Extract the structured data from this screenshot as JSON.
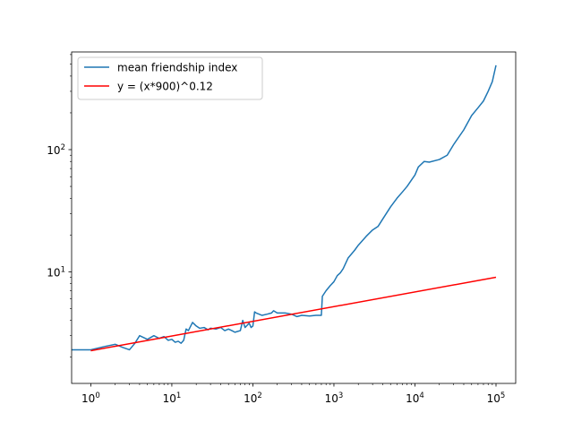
{
  "chart_data": {
    "type": "line",
    "title": "",
    "xlabel": "",
    "ylabel": "",
    "xscale": "log",
    "yscale": "log",
    "xlim": [
      0.58,
      175000
    ],
    "ylim": [
      1.22,
      630
    ],
    "grid": false,
    "legend_position": "top-left",
    "x_ticks": [
      {
        "value": 1,
        "base": "10",
        "exp": "0"
      },
      {
        "value": 10,
        "base": "10",
        "exp": "1"
      },
      {
        "value": 100,
        "base": "10",
        "exp": "2"
      },
      {
        "value": 1000,
        "base": "10",
        "exp": "3"
      },
      {
        "value": 10000,
        "base": "10",
        "exp": "4"
      },
      {
        "value": 100000,
        "base": "10",
        "exp": "5"
      }
    ],
    "y_ticks": [
      {
        "value": 10,
        "base": "10",
        "exp": "1"
      },
      {
        "value": 100,
        "base": "10",
        "exp": "2"
      }
    ],
    "series": [
      {
        "name": "mean friendship index",
        "color": "#1f77b4",
        "points": [
          [
            0.58,
            2.3
          ],
          [
            1,
            2.3
          ],
          [
            1.5,
            2.45
          ],
          [
            2,
            2.55
          ],
          [
            2.5,
            2.4
          ],
          [
            3,
            2.3
          ],
          [
            3.5,
            2.6
          ],
          [
            4,
            3.0
          ],
          [
            5,
            2.8
          ],
          [
            6,
            3.0
          ],
          [
            7,
            2.85
          ],
          [
            8,
            2.95
          ],
          [
            9,
            2.75
          ],
          [
            10,
            2.8
          ],
          [
            11,
            2.65
          ],
          [
            12,
            2.7
          ],
          [
            13,
            2.6
          ],
          [
            14,
            2.75
          ],
          [
            15,
            3.4
          ],
          [
            16,
            3.3
          ],
          [
            18,
            3.85
          ],
          [
            20,
            3.6
          ],
          [
            22,
            3.45
          ],
          [
            25,
            3.5
          ],
          [
            28,
            3.35
          ],
          [
            30,
            3.45
          ],
          [
            35,
            3.4
          ],
          [
            40,
            3.5
          ],
          [
            45,
            3.3
          ],
          [
            50,
            3.4
          ],
          [
            55,
            3.3
          ],
          [
            60,
            3.2
          ],
          [
            70,
            3.3
          ],
          [
            75,
            4.0
          ],
          [
            80,
            3.5
          ],
          [
            90,
            3.8
          ],
          [
            95,
            3.5
          ],
          [
            100,
            3.6
          ],
          [
            105,
            4.7
          ],
          [
            110,
            4.6
          ],
          [
            130,
            4.4
          ],
          [
            150,
            4.5
          ],
          [
            170,
            4.6
          ],
          [
            180,
            4.8
          ],
          [
            200,
            4.6
          ],
          [
            250,
            4.6
          ],
          [
            300,
            4.5
          ],
          [
            350,
            4.3
          ],
          [
            400,
            4.4
          ],
          [
            500,
            4.35
          ],
          [
            600,
            4.4
          ],
          [
            700,
            4.4
          ],
          [
            720,
            6.3
          ],
          [
            800,
            7.0
          ],
          [
            900,
            7.7
          ],
          [
            1000,
            8.3
          ],
          [
            1100,
            9.3
          ],
          [
            1200,
            9.8
          ],
          [
            1300,
            10.6
          ],
          [
            1500,
            13.0
          ],
          [
            1800,
            15.0
          ],
          [
            2000,
            16.5
          ],
          [
            2500,
            19.5
          ],
          [
            3000,
            22.0
          ],
          [
            3500,
            23.5
          ],
          [
            4000,
            27.0
          ],
          [
            5000,
            34.0
          ],
          [
            6000,
            40.0
          ],
          [
            7000,
            45.0
          ],
          [
            8000,
            50.0
          ],
          [
            9000,
            56.0
          ],
          [
            10000,
            62.0
          ],
          [
            11000,
            72.0
          ],
          [
            13000,
            80.0
          ],
          [
            15000,
            79.0
          ],
          [
            20000,
            83.0
          ],
          [
            25000,
            90.0
          ],
          [
            30000,
            110.0
          ],
          [
            40000,
            145.0
          ],
          [
            50000,
            190.0
          ],
          [
            60000,
            220.0
          ],
          [
            70000,
            250.0
          ],
          [
            80000,
            300.0
          ],
          [
            90000,
            360.0
          ],
          [
            100000,
            490.0
          ]
        ]
      },
      {
        "name": "y = (x*900)^0.12",
        "color": "#ff0000",
        "points": [
          [
            1,
            2.26
          ],
          [
            100000,
            9.02
          ]
        ]
      }
    ]
  }
}
